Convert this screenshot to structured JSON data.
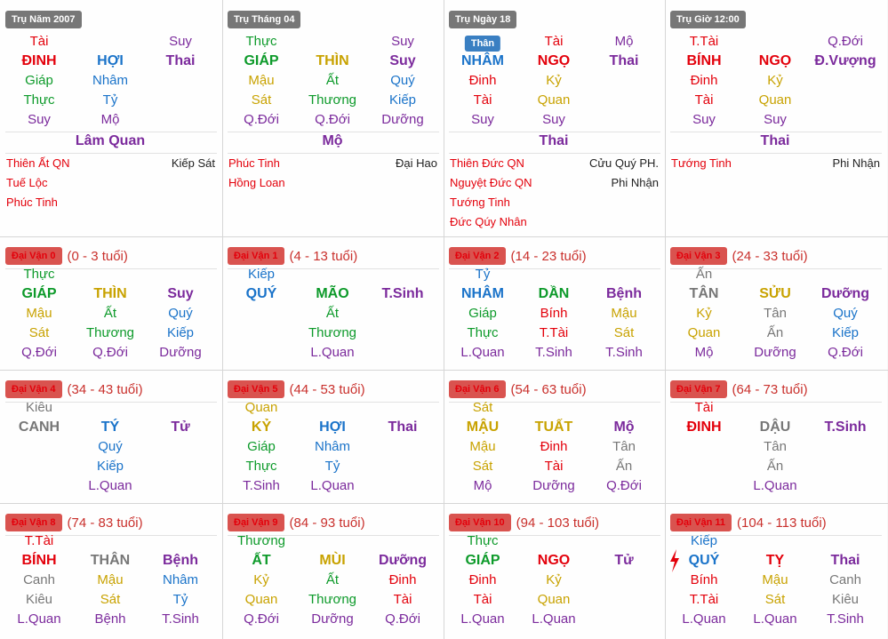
{
  "colors": {
    "red": "#e3000b",
    "blue": "#1a73c9",
    "green": "#0d9a2a",
    "yellow": "#c8a200",
    "gray": "#777777",
    "purple": "#7b2a9c",
    "badge_red": "#d9534f",
    "badge_gray": "#777777"
  },
  "pillars": [
    {
      "title": "Trụ Năm 2007",
      "top": [
        {
          "t": "Tài",
          "c": "red"
        },
        null,
        {
          "t": "Suy",
          "c": "purple"
        }
      ],
      "mid": [
        {
          "t": "ĐINH",
          "c": "red"
        },
        {
          "t": "HỢI",
          "c": "blue"
        },
        {
          "t": "Thai",
          "c": "purple"
        }
      ],
      "r3": [
        {
          "t": "Giáp",
          "c": "green"
        },
        {
          "t": "Nhâm",
          "c": "blue"
        },
        null
      ],
      "r4": [
        {
          "t": "Thực",
          "c": "green"
        },
        {
          "t": "Tỷ",
          "c": "blue"
        },
        null
      ],
      "r5": [
        {
          "t": "Suy",
          "c": "purple"
        },
        {
          "t": "Mộ",
          "c": "purple"
        },
        null
      ],
      "center": "Lâm Quan",
      "stars": [
        {
          "l": "Thiên Ất QN",
          "r": "Kiếp Sát"
        },
        {
          "l": "Tuế Lộc",
          "r": ""
        },
        {
          "l": "Phúc Tinh",
          "r": ""
        }
      ]
    },
    {
      "title": "Trụ Tháng 04",
      "top": [
        {
          "t": "Thực",
          "c": "green"
        },
        null,
        {
          "t": "Suy",
          "c": "purple"
        }
      ],
      "mid": [
        {
          "t": "GIÁP",
          "c": "green"
        },
        {
          "t": "THÌN",
          "c": "yellow"
        },
        {
          "t": "Suy",
          "c": "purple"
        }
      ],
      "r3": [
        {
          "t": "Mậu",
          "c": "yellow"
        },
        {
          "t": "Ất",
          "c": "green"
        },
        {
          "t": "Quý",
          "c": "blue"
        }
      ],
      "r4": [
        {
          "t": "Sát",
          "c": "yellow"
        },
        {
          "t": "Thương",
          "c": "green"
        },
        {
          "t": "Kiếp",
          "c": "blue"
        }
      ],
      "r5": [
        {
          "t": "Q.Đới",
          "c": "purple"
        },
        {
          "t": "Q.Đới",
          "c": "purple"
        },
        {
          "t": "Dưỡng",
          "c": "purple"
        }
      ],
      "center": "Mộ",
      "stars": [
        {
          "l": "Phúc Tinh",
          "r": "Đại Hao"
        },
        {
          "l": "Hồng Loan",
          "r": ""
        }
      ]
    },
    {
      "title": "Trụ Ngày 18",
      "than": "Thân",
      "top": [
        null,
        {
          "t": "Tài",
          "c": "red"
        },
        {
          "t": "Mộ",
          "c": "purple"
        }
      ],
      "mid": [
        {
          "t": "NHÂM",
          "c": "blue"
        },
        {
          "t": "NGỌ",
          "c": "red"
        },
        {
          "t": "Thai",
          "c": "purple"
        }
      ],
      "r3": [
        {
          "t": "Đinh",
          "c": "red"
        },
        {
          "t": "Kỷ",
          "c": "yellow"
        },
        null
      ],
      "r4": [
        {
          "t": "Tài",
          "c": "red"
        },
        {
          "t": "Quan",
          "c": "yellow"
        },
        null
      ],
      "r5": [
        {
          "t": "Suy",
          "c": "purple"
        },
        {
          "t": "Suy",
          "c": "purple"
        },
        null
      ],
      "center": "Thai",
      "stars": [
        {
          "l": "Thiên Đức QN",
          "r": "Cửu Quý PH."
        },
        {
          "l": "Nguyệt Đức QN",
          "r": "Phi Nhận"
        },
        {
          "l": "Tướng Tinh",
          "r": ""
        },
        {
          "l": "Đức Qúy Nhân",
          "r": ""
        }
      ]
    },
    {
      "title": "Trụ Giờ 12:00",
      "top": [
        {
          "t": "T.Tài",
          "c": "red"
        },
        null,
        {
          "t": "Q.Đới",
          "c": "purple"
        }
      ],
      "mid": [
        {
          "t": "BÍNH",
          "c": "red"
        },
        {
          "t": "NGỌ",
          "c": "red"
        },
        {
          "t": "Đ.Vượng",
          "c": "purple"
        }
      ],
      "r3": [
        {
          "t": "Đinh",
          "c": "red"
        },
        {
          "t": "Kỷ",
          "c": "yellow"
        },
        null
      ],
      "r4": [
        {
          "t": "Tài",
          "c": "red"
        },
        {
          "t": "Quan",
          "c": "yellow"
        },
        null
      ],
      "r5": [
        {
          "t": "Suy",
          "c": "purple"
        },
        {
          "t": "Suy",
          "c": "purple"
        },
        null
      ],
      "center": "Thai",
      "stars": [
        {
          "l": "Tướng Tinh",
          "r": "Phi Nhận"
        }
      ]
    }
  ],
  "dai_van": [
    {
      "label": "Đại Vận 0",
      "age": "(0 - 3 tuổi)",
      "top": [
        {
          "t": "Thực",
          "c": "green"
        },
        null,
        null
      ],
      "mid": [
        {
          "t": "GIÁP",
          "c": "green"
        },
        {
          "t": "THÌN",
          "c": "yellow"
        },
        {
          "t": "Suy",
          "c": "purple"
        }
      ],
      "r3": [
        {
          "t": "Mậu",
          "c": "yellow"
        },
        {
          "t": "Ất",
          "c": "green"
        },
        {
          "t": "Quý",
          "c": "blue"
        }
      ],
      "r4": [
        {
          "t": "Sát",
          "c": "yellow"
        },
        {
          "t": "Thương",
          "c": "green"
        },
        {
          "t": "Kiếp",
          "c": "blue"
        }
      ],
      "r5": [
        {
          "t": "Q.Đới",
          "c": "purple"
        },
        {
          "t": "Q.Đới",
          "c": "purple"
        },
        {
          "t": "Dưỡng",
          "c": "purple"
        }
      ]
    },
    {
      "label": "Đại Vận 1",
      "age": "(4 - 13 tuổi)",
      "top": [
        {
          "t": "Kiếp",
          "c": "blue"
        },
        null,
        null
      ],
      "mid": [
        {
          "t": "QUÝ",
          "c": "blue"
        },
        {
          "t": "MÃO",
          "c": "green"
        },
        {
          "t": "T.Sinh",
          "c": "purple"
        }
      ],
      "r3": [
        null,
        {
          "t": "Ất",
          "c": "green"
        },
        null
      ],
      "r4": [
        null,
        {
          "t": "Thương",
          "c": "green"
        },
        null
      ],
      "r5": [
        null,
        {
          "t": "L.Quan",
          "c": "purple"
        },
        null
      ]
    },
    {
      "label": "Đại Vận 2",
      "age": "(14 - 23 tuổi)",
      "top": [
        {
          "t": "Tỷ",
          "c": "blue"
        },
        null,
        null
      ],
      "mid": [
        {
          "t": "NHÂM",
          "c": "blue"
        },
        {
          "t": "DẦN",
          "c": "green"
        },
        {
          "t": "Bệnh",
          "c": "purple"
        }
      ],
      "r3": [
        {
          "t": "Giáp",
          "c": "green"
        },
        {
          "t": "Bính",
          "c": "red"
        },
        {
          "t": "Mậu",
          "c": "yellow"
        }
      ],
      "r4": [
        {
          "t": "Thực",
          "c": "green"
        },
        {
          "t": "T.Tài",
          "c": "red"
        },
        {
          "t": "Sát",
          "c": "yellow"
        }
      ],
      "r5": [
        {
          "t": "L.Quan",
          "c": "purple"
        },
        {
          "t": "T.Sinh",
          "c": "purple"
        },
        {
          "t": "T.Sinh",
          "c": "purple"
        }
      ]
    },
    {
      "label": "Đại Vận 3",
      "age": "(24 - 33 tuổi)",
      "top": [
        {
          "t": "Ấn",
          "c": "gray"
        },
        null,
        null
      ],
      "mid": [
        {
          "t": "TÂN",
          "c": "gray"
        },
        {
          "t": "SỬU",
          "c": "yellow"
        },
        {
          "t": "Dưỡng",
          "c": "purple"
        }
      ],
      "r3": [
        {
          "t": "Kỷ",
          "c": "yellow"
        },
        {
          "t": "Tân",
          "c": "gray"
        },
        {
          "t": "Quý",
          "c": "blue"
        }
      ],
      "r4": [
        {
          "t": "Quan",
          "c": "yellow"
        },
        {
          "t": "Ấn",
          "c": "gray"
        },
        {
          "t": "Kiếp",
          "c": "blue"
        }
      ],
      "r5": [
        {
          "t": "Mộ",
          "c": "purple"
        },
        {
          "t": "Dưỡng",
          "c": "purple"
        },
        {
          "t": "Q.Đới",
          "c": "purple"
        }
      ]
    },
    {
      "label": "Đại Vận 4",
      "age": "(34 - 43 tuổi)",
      "top": [
        {
          "t": "Kiêu",
          "c": "gray"
        },
        null,
        null
      ],
      "mid": [
        {
          "t": "CANH",
          "c": "gray"
        },
        {
          "t": "TÝ",
          "c": "blue"
        },
        {
          "t": "Tử",
          "c": "purple"
        }
      ],
      "r3": [
        null,
        {
          "t": "Quý",
          "c": "blue"
        },
        null
      ],
      "r4": [
        null,
        {
          "t": "Kiếp",
          "c": "blue"
        },
        null
      ],
      "r5": [
        null,
        {
          "t": "L.Quan",
          "c": "purple"
        },
        null
      ]
    },
    {
      "label": "Đại Vận 5",
      "age": "(44 - 53 tuổi)",
      "top": [
        {
          "t": "Quan",
          "c": "yellow"
        },
        null,
        null
      ],
      "mid": [
        {
          "t": "KỶ",
          "c": "yellow"
        },
        {
          "t": "HỢI",
          "c": "blue"
        },
        {
          "t": "Thai",
          "c": "purple"
        }
      ],
      "r3": [
        {
          "t": "Giáp",
          "c": "green"
        },
        {
          "t": "Nhâm",
          "c": "blue"
        },
        null
      ],
      "r4": [
        {
          "t": "Thực",
          "c": "green"
        },
        {
          "t": "Tỷ",
          "c": "blue"
        },
        null
      ],
      "r5": [
        {
          "t": "T.Sinh",
          "c": "purple"
        },
        {
          "t": "L.Quan",
          "c": "purple"
        },
        null
      ]
    },
    {
      "label": "Đại Vận 6",
      "age": "(54 - 63 tuổi)",
      "top": [
        {
          "t": "Sát",
          "c": "yellow"
        },
        null,
        null
      ],
      "mid": [
        {
          "t": "MẬU",
          "c": "yellow"
        },
        {
          "t": "TUẤT",
          "c": "yellow"
        },
        {
          "t": "Mộ",
          "c": "purple"
        }
      ],
      "r3": [
        {
          "t": "Mậu",
          "c": "yellow"
        },
        {
          "t": "Đinh",
          "c": "red"
        },
        {
          "t": "Tân",
          "c": "gray"
        }
      ],
      "r4": [
        {
          "t": "Sát",
          "c": "yellow"
        },
        {
          "t": "Tài",
          "c": "red"
        },
        {
          "t": "Ấn",
          "c": "gray"
        }
      ],
      "r5": [
        {
          "t": "Mộ",
          "c": "purple"
        },
        {
          "t": "Dưỡng",
          "c": "purple"
        },
        {
          "t": "Q.Đới",
          "c": "purple"
        }
      ]
    },
    {
      "label": "Đại Vận 7",
      "age": "(64 - 73 tuổi)",
      "top": [
        {
          "t": "Tài",
          "c": "red"
        },
        null,
        null
      ],
      "mid": [
        {
          "t": "ĐINH",
          "c": "red"
        },
        {
          "t": "DẬU",
          "c": "gray"
        },
        {
          "t": "T.Sinh",
          "c": "purple"
        }
      ],
      "r3": [
        null,
        {
          "t": "Tân",
          "c": "gray"
        },
        null
      ],
      "r4": [
        null,
        {
          "t": "Ấn",
          "c": "gray"
        },
        null
      ],
      "r5": [
        null,
        {
          "t": "L.Quan",
          "c": "purple"
        },
        null
      ]
    },
    {
      "label": "Đại Vận 8",
      "age": "(74 - 83 tuổi)",
      "top": [
        {
          "t": "T.Tài",
          "c": "red"
        },
        null,
        null
      ],
      "mid": [
        {
          "t": "BÍNH",
          "c": "red"
        },
        {
          "t": "THÂN",
          "c": "gray"
        },
        {
          "t": "Bệnh",
          "c": "purple"
        }
      ],
      "r3": [
        {
          "t": "Canh",
          "c": "gray"
        },
        {
          "t": "Mậu",
          "c": "yellow"
        },
        {
          "t": "Nhâm",
          "c": "blue"
        }
      ],
      "r4": [
        {
          "t": "Kiêu",
          "c": "gray"
        },
        {
          "t": "Sát",
          "c": "yellow"
        },
        {
          "t": "Tỷ",
          "c": "blue"
        }
      ],
      "r5": [
        {
          "t": "L.Quan",
          "c": "purple"
        },
        {
          "t": "Bệnh",
          "c": "purple"
        },
        {
          "t": "T.Sinh",
          "c": "purple"
        }
      ]
    },
    {
      "label": "Đại Vận 9",
      "age": "(84 - 93 tuổi)",
      "top": [
        {
          "t": "Thương",
          "c": "green"
        },
        null,
        null
      ],
      "mid": [
        {
          "t": "ẤT",
          "c": "green"
        },
        {
          "t": "MÙI",
          "c": "yellow"
        },
        {
          "t": "Dưỡng",
          "c": "purple"
        }
      ],
      "r3": [
        {
          "t": "Kỷ",
          "c": "yellow"
        },
        {
          "t": "Ất",
          "c": "green"
        },
        {
          "t": "Đinh",
          "c": "red"
        }
      ],
      "r4": [
        {
          "t": "Quan",
          "c": "yellow"
        },
        {
          "t": "Thương",
          "c": "green"
        },
        {
          "t": "Tài",
          "c": "red"
        }
      ],
      "r5": [
        {
          "t": "Q.Đới",
          "c": "purple"
        },
        {
          "t": "Dưỡng",
          "c": "purple"
        },
        {
          "t": "Q.Đới",
          "c": "purple"
        }
      ]
    },
    {
      "label": "Đại Vận 10",
      "age": "(94 - 103 tuổi)",
      "top": [
        {
          "t": "Thực",
          "c": "green"
        },
        null,
        null
      ],
      "mid": [
        {
          "t": "GIÁP",
          "c": "green"
        },
        {
          "t": "NGỌ",
          "c": "red"
        },
        {
          "t": "Tử",
          "c": "purple"
        }
      ],
      "r3": [
        {
          "t": "Đinh",
          "c": "red"
        },
        {
          "t": "Kỷ",
          "c": "yellow"
        },
        null
      ],
      "r4": [
        {
          "t": "Tài",
          "c": "red"
        },
        {
          "t": "Quan",
          "c": "yellow"
        },
        null
      ],
      "r5": [
        {
          "t": "L.Quan",
          "c": "purple"
        },
        {
          "t": "L.Quan",
          "c": "purple"
        },
        null
      ]
    },
    {
      "label": "Đại Vận 11",
      "age": "(104 - 113 tuổi)",
      "current": true,
      "top": [
        {
          "t": "Kiếp",
          "c": "blue"
        },
        null,
        null
      ],
      "mid": [
        {
          "t": "QUÝ",
          "c": "blue"
        },
        {
          "t": "TỴ",
          "c": "red"
        },
        {
          "t": "Thai",
          "c": "purple"
        }
      ],
      "r3": [
        {
          "t": "Bính",
          "c": "red"
        },
        {
          "t": "Mậu",
          "c": "yellow"
        },
        {
          "t": "Canh",
          "c": "gray"
        }
      ],
      "r4": [
        {
          "t": "T.Tài",
          "c": "red"
        },
        {
          "t": "Sát",
          "c": "yellow"
        },
        {
          "t": "Kiêu",
          "c": "gray"
        }
      ],
      "r5": [
        {
          "t": "L.Quan",
          "c": "purple"
        },
        {
          "t": "L.Quan",
          "c": "purple"
        },
        {
          "t": "T.Sinh",
          "c": "purple"
        }
      ]
    }
  ]
}
